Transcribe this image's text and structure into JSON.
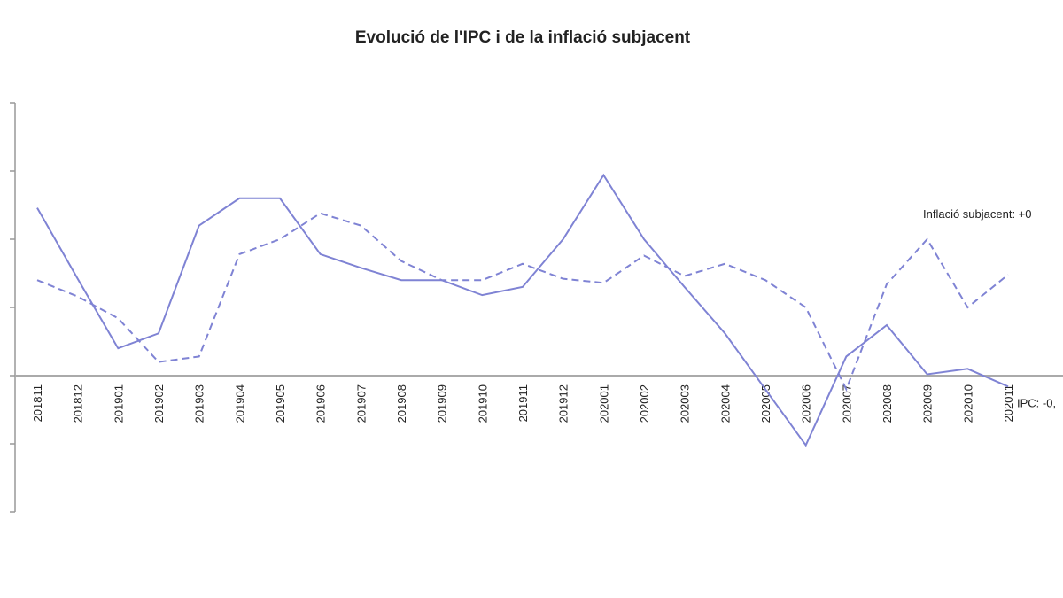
{
  "chart_data": {
    "type": "line",
    "title": "Evolució de l'IPC i de la inflació subjacent",
    "categories": [
      "201811",
      "201812",
      "201901",
      "201902",
      "201903",
      "201904",
      "201905",
      "201906",
      "201907",
      "201908",
      "201909",
      "201910",
      "201911",
      "201912",
      "202001",
      "202002",
      "202003",
      "202004",
      "202005",
      "202006",
      "202007",
      "202008",
      "202009",
      "202010",
      "202011"
    ],
    "series": [
      {
        "color": "#7f83d4",
        "dashed": false,
        "values": [
          1.23,
          0.71,
          0.2,
          0.31,
          1.1,
          1.3,
          1.3,
          0.89,
          0.79,
          0.7,
          0.7,
          0.59,
          0.65,
          1.0,
          1.47,
          1.0,
          0.65,
          0.31,
          -0.1,
          -0.51,
          0.14,
          0.37,
          0.01,
          0.05,
          -0.08
        ]
      },
      {
        "color": "#7f83d4",
        "dashed": true,
        "values": [
          0.7,
          0.58,
          0.42,
          0.1,
          0.14,
          0.89,
          1.0,
          1.19,
          1.1,
          0.84,
          0.7,
          0.7,
          0.82,
          0.71,
          0.68,
          0.88,
          0.73,
          0.82,
          0.7,
          0.5,
          -0.1,
          0.67,
          1.0,
          0.5,
          0.74
        ]
      }
    ],
    "annotations": [
      {
        "text": "Inflació subjacent: +0",
        "series": 1
      },
      {
        "text": "IPC: -0,",
        "series": 0
      }
    ],
    "ylim": [
      -1.0,
      2.0
    ],
    "yticks": [
      -1.0,
      -0.5,
      0,
      0.5,
      1.0,
      1.5,
      2.0
    ]
  }
}
